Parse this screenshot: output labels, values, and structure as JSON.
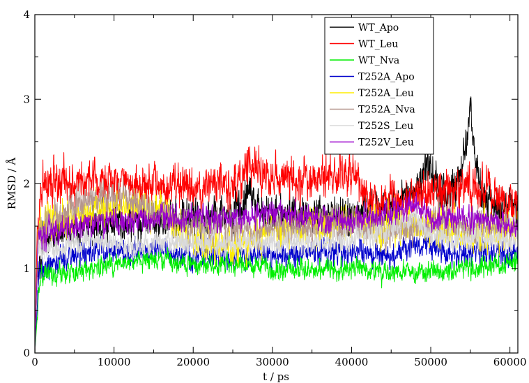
{
  "chart_data": {
    "type": "line",
    "title": "",
    "xlabel": "t / ps",
    "ylabel": "RMSD / Å",
    "xlim": [
      0,
      61000
    ],
    "ylim": [
      0,
      4
    ],
    "xticks": [
      0,
      10000,
      20000,
      30000,
      40000,
      50000,
      60000
    ],
    "xtick_labels": [
      "0",
      "10000",
      "20000",
      "30000",
      "40000",
      "50000",
      "60000"
    ],
    "yticks": [
      0,
      1,
      2,
      3,
      4
    ],
    "ytick_labels": [
      "0",
      "1",
      "2",
      "3",
      "4"
    ],
    "grid": false,
    "legend_position": "top-right",
    "series": [
      {
        "name": "WT_Apo",
        "color": "#000000",
        "noise": 0.18,
        "x": [
          0,
          300,
          1000,
          3000,
          6000,
          10000,
          15000,
          20000,
          25000,
          26500,
          27000,
          27500,
          30000,
          35000,
          40000,
          45000,
          48000,
          49500,
          50500,
          52000,
          53500,
          54500,
          55000,
          55500,
          56500,
          58000,
          61000
        ],
        "y": [
          0.0,
          0.9,
          1.3,
          1.45,
          1.5,
          1.55,
          1.6,
          1.6,
          1.65,
          1.8,
          1.95,
          1.8,
          1.65,
          1.6,
          1.65,
          1.7,
          1.9,
          2.25,
          2.05,
          1.85,
          2.05,
          2.5,
          2.95,
          2.4,
          1.85,
          1.75,
          1.7
        ]
      },
      {
        "name": "WT_Leu",
        "color": "#ff0000",
        "noise": 0.2,
        "x": [
          0,
          300,
          1000,
          3000,
          6000,
          10000,
          15000,
          20000,
          25000,
          27000,
          30000,
          33000,
          36000,
          40000,
          43000,
          46000,
          50000,
          55000,
          58000,
          61000
        ],
        "y": [
          0.0,
          1.5,
          2.0,
          2.0,
          2.05,
          2.05,
          2.0,
          1.95,
          1.95,
          2.2,
          2.05,
          2.1,
          2.05,
          2.15,
          1.75,
          1.8,
          1.9,
          1.95,
          1.85,
          1.75
        ]
      },
      {
        "name": "WT_Nva",
        "color": "#00ee00",
        "noise": 0.1,
        "x": [
          0,
          600,
          1200,
          3000,
          6000,
          10000,
          15000,
          20000,
          25000,
          30000,
          35000,
          40000,
          45000,
          50000,
          55000,
          61000
        ],
        "y": [
          0.0,
          0.85,
          0.9,
          0.92,
          0.98,
          1.05,
          1.1,
          1.05,
          1.05,
          1.0,
          1.0,
          1.0,
          0.95,
          0.95,
          1.0,
          1.05
        ]
      },
      {
        "name": "T252A_Apo",
        "color": "#0000cc",
        "noise": 0.12,
        "x": [
          0,
          500,
          2000,
          5000,
          8000,
          12000,
          16000,
          20000,
          25000,
          30000,
          35000,
          40000,
          45000,
          48000,
          50000,
          53000,
          56000,
          61000
        ],
        "y": [
          0.0,
          0.9,
          1.05,
          1.15,
          1.2,
          1.2,
          1.2,
          1.15,
          1.15,
          1.15,
          1.2,
          1.2,
          1.15,
          1.3,
          1.25,
          1.15,
          1.2,
          1.15
        ]
      },
      {
        "name": "T252A_Leu",
        "color": "#ffee00",
        "noise": 0.18,
        "x": [
          0,
          400,
          2000,
          5000,
          8000,
          12000,
          15000,
          18000,
          22000,
          25000,
          30000,
          35000,
          40000,
          45000,
          50000,
          55000,
          61000
        ],
        "y": [
          0.0,
          1.4,
          1.55,
          1.65,
          1.7,
          1.75,
          1.7,
          1.5,
          1.3,
          1.25,
          1.45,
          1.5,
          1.55,
          1.5,
          1.5,
          1.45,
          1.45
        ]
      },
      {
        "name": "T252A_Nva",
        "color": "#b5968e",
        "noise": 0.16,
        "x": [
          0,
          400,
          2000,
          5000,
          8000,
          12000,
          16000,
          20000,
          25000,
          30000,
          35000,
          40000,
          44000,
          48000,
          52000,
          56000,
          61000
        ],
        "y": [
          0.0,
          1.3,
          1.6,
          1.75,
          1.85,
          1.8,
          1.65,
          1.5,
          1.45,
          1.45,
          1.5,
          1.5,
          1.45,
          1.5,
          1.55,
          1.5,
          1.45
        ]
      },
      {
        "name": "T252S_Leu",
        "color": "#d8d8d8",
        "noise": 0.12,
        "x": [
          0,
          400,
          2000,
          5000,
          8000,
          12000,
          16000,
          20000,
          25000,
          30000,
          35000,
          40000,
          45000,
          48000,
          50000,
          55000,
          61000
        ],
        "y": [
          0.0,
          1.2,
          1.25,
          1.3,
          1.3,
          1.3,
          1.3,
          1.3,
          1.3,
          1.3,
          1.3,
          1.35,
          1.45,
          1.6,
          1.4,
          1.35,
          1.35
        ]
      },
      {
        "name": "T252V_Leu",
        "color": "#9900cc",
        "noise": 0.12,
        "x": [
          0,
          400,
          2000,
          5000,
          8000,
          12000,
          16000,
          20000,
          25000,
          30000,
          35000,
          40000,
          45000,
          48000,
          50000,
          55000,
          61000
        ],
        "y": [
          0.0,
          1.35,
          1.45,
          1.5,
          1.55,
          1.55,
          1.6,
          1.6,
          1.6,
          1.65,
          1.6,
          1.55,
          1.65,
          1.75,
          1.6,
          1.6,
          1.5
        ]
      }
    ]
  }
}
